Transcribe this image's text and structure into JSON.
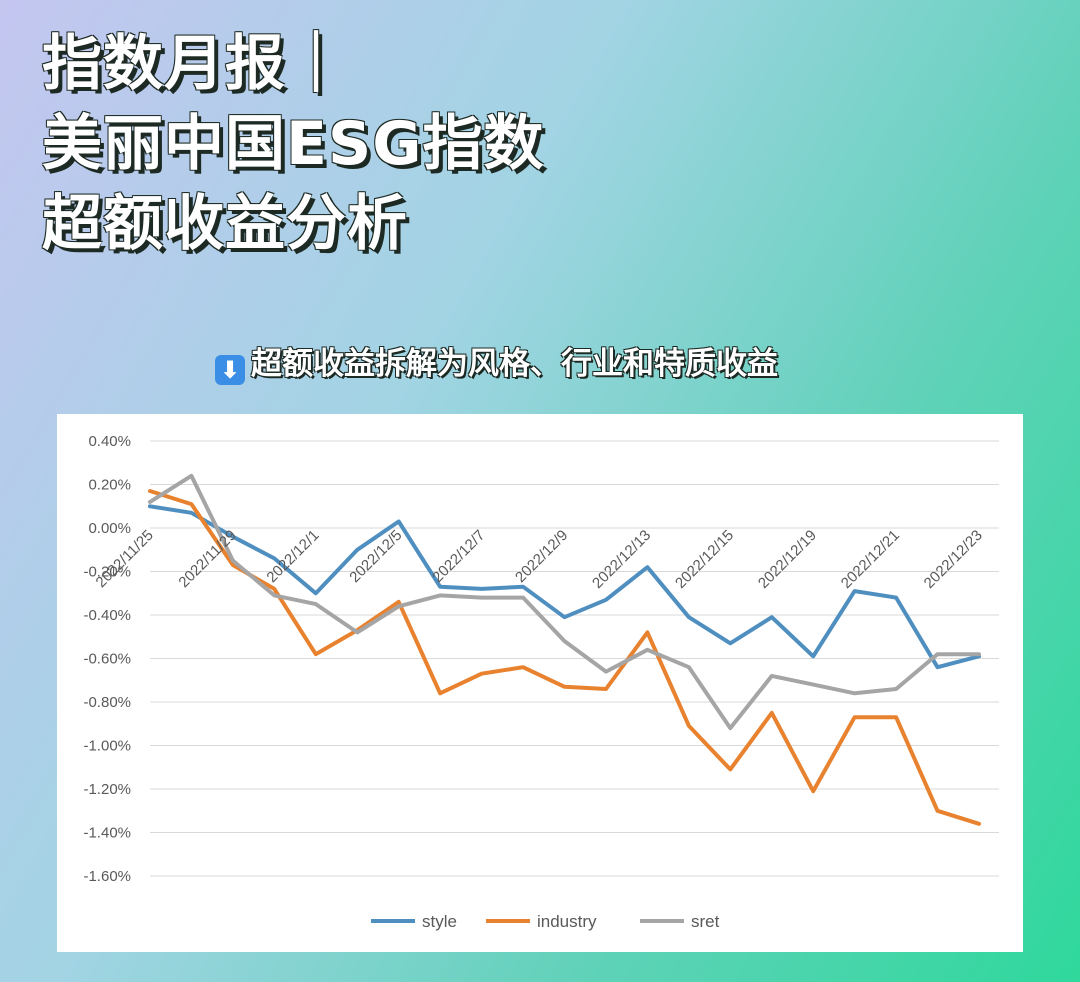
{
  "header": {
    "title_lines": [
      "指数月报｜",
      "美丽中国ESG指数",
      "超额收益分析"
    ],
    "subtitle": "超额收益拆解为风格、行业和特质收益",
    "subtitle_icon": "down-arrow-icon"
  },
  "chart_data": {
    "type": "line",
    "title": "",
    "xlabel": "",
    "ylabel": "",
    "ylim": [
      -1.6,
      0.4
    ],
    "yticks": [
      0.4,
      0.2,
      0.0,
      -0.2,
      -0.4,
      -0.6,
      -0.8,
      -1.0,
      -1.2,
      -1.4,
      -1.6
    ],
    "ytick_labels": [
      "0.40%",
      "0.20%",
      "0.00%",
      "-0.20%",
      "-0.40%",
      "-0.60%",
      "-0.80%",
      "-1.00%",
      "-1.20%",
      "-1.40%",
      "-1.60%"
    ],
    "xtick_labels": [
      "2022/11/25",
      "2022/11/29",
      "2022/12/1",
      "2022/12/5",
      "2022/12/7",
      "2022/12/9",
      "2022/12/13",
      "2022/12/15",
      "2022/12/19",
      "2022/12/21",
      "2022/12/23"
    ],
    "xtick_indices": [
      0,
      2,
      4,
      6,
      8,
      10,
      12,
      14,
      16,
      18,
      20
    ],
    "n_points": 21,
    "grid": true,
    "legend_position": "bottom",
    "series": [
      {
        "name": "style",
        "color": "#4f8fc0",
        "values": [
          0.1,
          0.07,
          -0.04,
          -0.14,
          -0.3,
          -0.1,
          0.03,
          -0.27,
          -0.28,
          -0.27,
          -0.41,
          -0.33,
          -0.18,
          -0.41,
          -0.53,
          -0.41,
          -0.59,
          -0.29,
          -0.32,
          -0.64,
          -0.59
        ]
      },
      {
        "name": "industry",
        "color": "#e8822f",
        "values": [
          0.17,
          0.11,
          -0.17,
          -0.28,
          -0.58,
          -0.47,
          -0.34,
          -0.76,
          -0.67,
          -0.64,
          -0.73,
          -0.74,
          -0.48,
          -0.91,
          -1.11,
          -0.85,
          -1.21,
          -0.87,
          -0.87,
          -1.3,
          -1.36
        ]
      },
      {
        "name": "sret",
        "color": "#a5a5a5",
        "values": [
          0.12,
          0.24,
          -0.15,
          -0.31,
          -0.35,
          -0.48,
          -0.36,
          -0.31,
          -0.32,
          -0.32,
          -0.52,
          -0.66,
          -0.56,
          -0.64,
          -0.92,
          -0.68,
          -0.72,
          -0.76,
          -0.74,
          -0.58,
          -0.58
        ]
      }
    ]
  }
}
